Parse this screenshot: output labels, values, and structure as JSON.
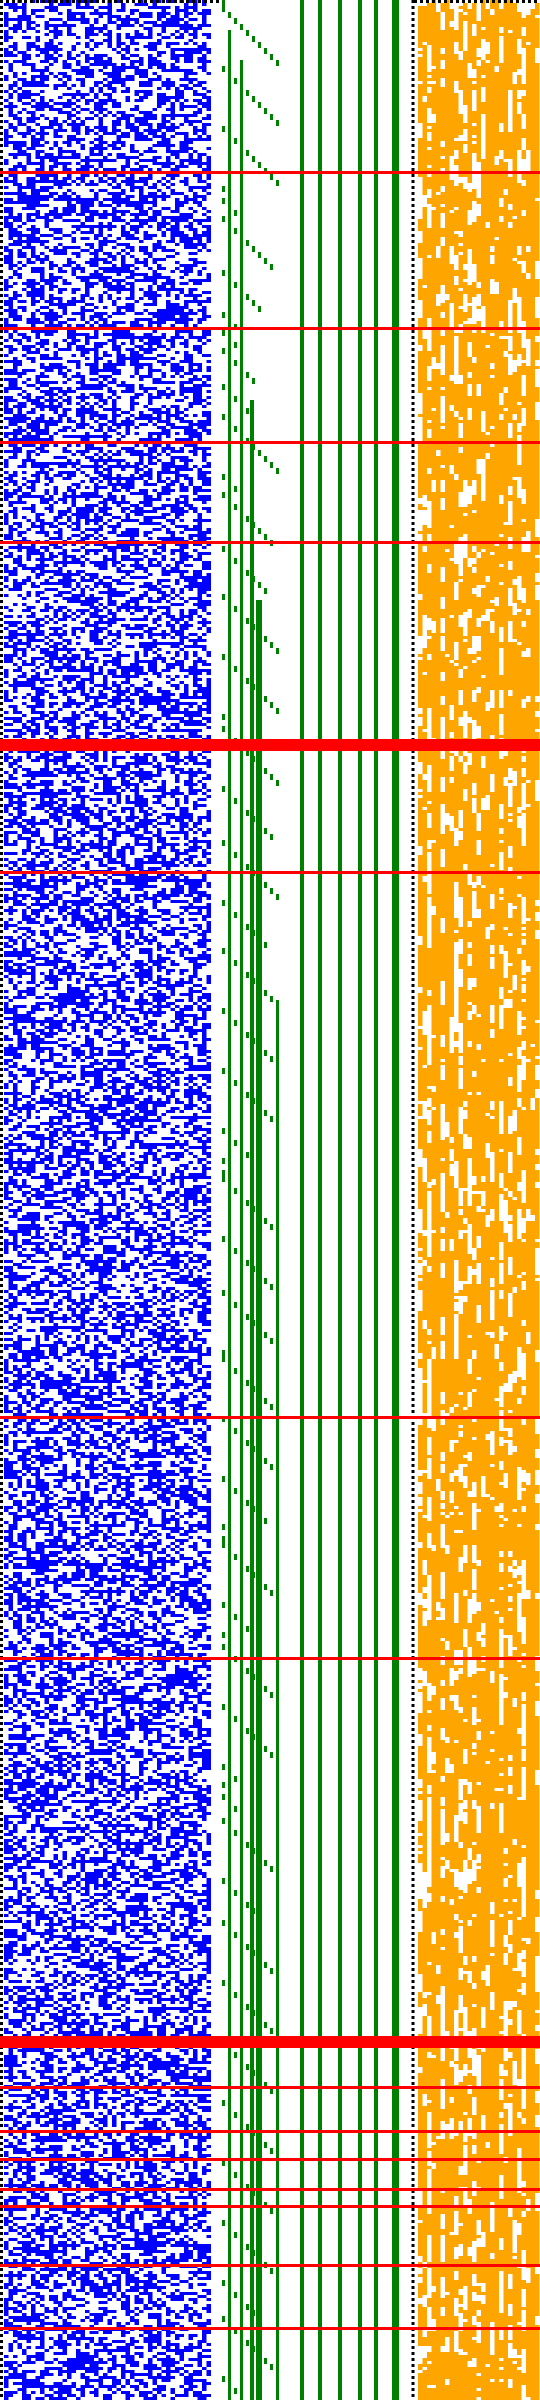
{
  "colors": {
    "background": "#ffffff",
    "bits": "#0000ff",
    "staircase": "#008000",
    "orange_bits": "#ffa500",
    "separator": "#ff0000",
    "dotted_border": "#000000"
  },
  "grid": {
    "rows": 1600,
    "blue_cols": 46,
    "orange_cols": 27,
    "blue_density": 0.5,
    "orange_density": 0.52
  },
  "staircase": {
    "depth_min": 1,
    "depth_max": 10
  },
  "thick_separator_rows": [
    739,
    2036
  ],
  "thin_separator_rows": [
    171,
    327,
    441,
    541,
    871,
    1416,
    1657,
    2086,
    2130,
    2158,
    2188,
    2205,
    2264,
    2327
  ]
}
